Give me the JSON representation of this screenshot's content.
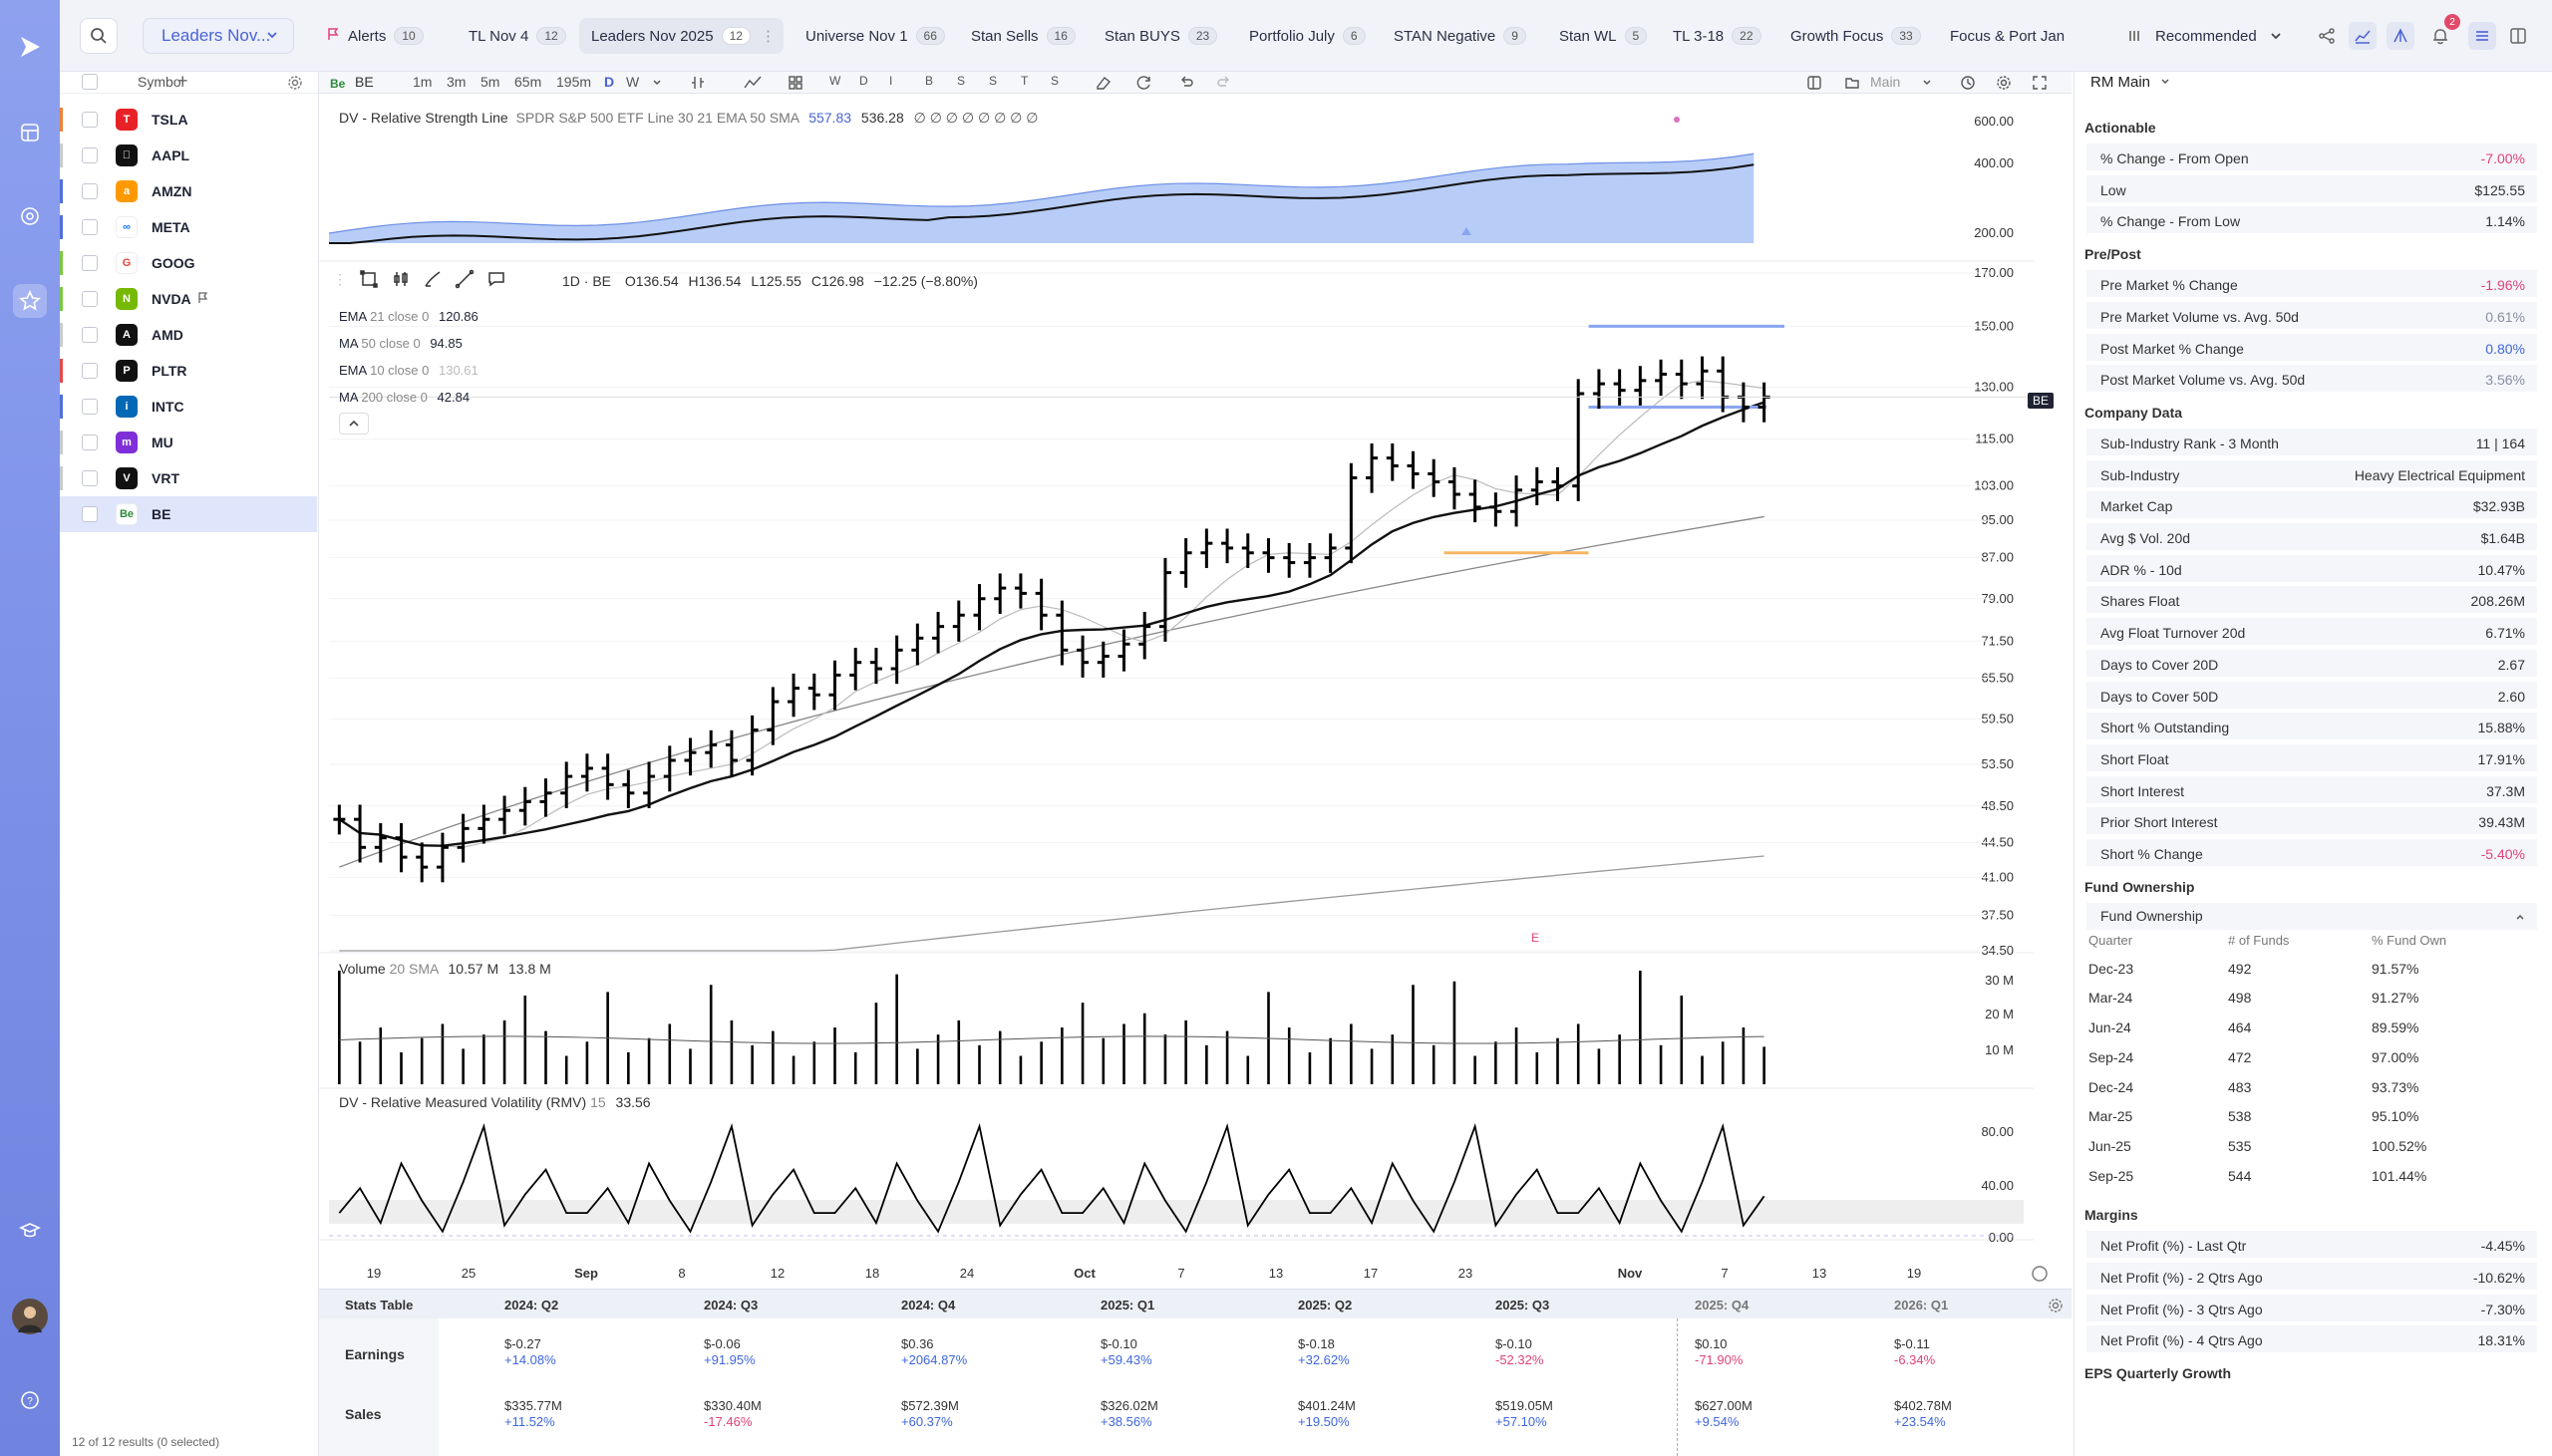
{
  "app": {
    "colors": {
      "accent": "#4a63d6",
      "positive": "#3f66dd",
      "negative": "#e0427a",
      "highlight": "#8aa5f0"
    }
  },
  "topbar": {
    "watchlist": "Leaders Nov...",
    "tabs": [
      {
        "label": "Alerts",
        "count": "10",
        "flag": true
      },
      {
        "label": "TL Nov 4",
        "count": "12"
      },
      {
        "label": "Leaders Nov 2025",
        "count": "12",
        "active": true
      },
      {
        "label": "Universe Nov 1",
        "count": "66"
      },
      {
        "label": "Stan Sells",
        "count": "16"
      },
      {
        "label": "Stan BUYS",
        "count": "23"
      },
      {
        "label": "Portfolio July",
        "count": "6"
      },
      {
        "label": "STAN Negative",
        "count": "9"
      },
      {
        "label": "Stan WL",
        "count": "5"
      },
      {
        "label": "TL 3-18",
        "count": "22"
      },
      {
        "label": "Growth Focus",
        "count": "33"
      },
      {
        "label": "Focus & Port Jan",
        "count": ""
      }
    ],
    "sort": "Recommended",
    "notif_count": "2"
  },
  "watchlist": {
    "header": "Symbol",
    "rows": [
      {
        "sym": "TSLA",
        "color": "#e82127",
        "edge": "#e8843a",
        "logo": "T"
      },
      {
        "sym": "AAPL",
        "color": "#111111",
        "edge": "#c9cbd3",
        "logo": ""
      },
      {
        "sym": "AMZN",
        "color": "#ff9900",
        "edge": "#4f6fd9",
        "logo": "a"
      },
      {
        "sym": "META",
        "color": "#ffffff",
        "edge": "#4f6fd9",
        "logo": "∞"
      },
      {
        "sym": "GOOG",
        "color": "#ffffff",
        "edge": "#7ac943",
        "logo": "G"
      },
      {
        "sym": "NVDA",
        "color": "#76b900",
        "edge": "#7ac943",
        "logo": "N",
        "flag": true
      },
      {
        "sym": "AMD",
        "color": "#111111",
        "edge": "#c9cbd3",
        "logo": "A"
      },
      {
        "sym": "PLTR",
        "color": "#111111",
        "edge": "#e24a4a",
        "logo": "P"
      },
      {
        "sym": "INTC",
        "color": "#0068b5",
        "edge": "#4f6fd9",
        "logo": "i"
      },
      {
        "sym": "MU",
        "color": "#7e2fd8",
        "edge": "#c9cbd3",
        "logo": "m"
      },
      {
        "sym": "VRT",
        "color": "#111111",
        "edge": "#c9cbd3",
        "logo": "V"
      },
      {
        "sym": "BE",
        "color": "#ffffff",
        "edge": "#dfe5fb",
        "logo": "Be",
        "selected": true
      }
    ],
    "footer": "12 of 12 results (0 selected)"
  },
  "toolbar": {
    "symbol": "BE",
    "timeframes": [
      "1m",
      "3m",
      "5m",
      "65m",
      "195m",
      "D",
      "W"
    ],
    "active_tf": "D",
    "bar_letters": [
      "W",
      "D",
      "I",
      "B",
      "S",
      "S",
      "T",
      "S"
    ],
    "layout": "Main"
  },
  "chart": {
    "rs_line": {
      "label": "DV - Relative Strength Line",
      "params": "SPDR S&P 500 ETF  Line 30  21 EMA  50 SMA",
      "v1": "557.83",
      "v2": "536.28",
      "dots": "∅ ∅ ∅ ∅ ∅ ∅ ∅ ∅"
    },
    "price": {
      "symbol": "1D · BE",
      "o": "O136.54",
      "h": "H136.54",
      "l": "L125.55",
      "c": "C126.98",
      "chg": "−12.25 (−8.80%)",
      "tag": "BE"
    },
    "mas": [
      {
        "name": "EMA",
        "params": "21 close 0",
        "value": "120.86",
        "color": "#111"
      },
      {
        "name": "MA",
        "params": "50 close 0",
        "value": "94.85",
        "color": "#111"
      },
      {
        "name": "EMA",
        "params": "10 close 0",
        "value": "130.61",
        "color": "#aaa"
      },
      {
        "name": "MA",
        "params": "200 close 0",
        "value": "42.84",
        "color": "#111"
      }
    ],
    "volume": {
      "label": "Volume",
      "params": "20 SMA",
      "v1": "10.57 M",
      "v2": "13.8 M"
    },
    "rmv": {
      "label": "DV - Relative Measured Volatility (RMV)",
      "params": "15",
      "value": "33.56"
    },
    "earnings_marker": "E",
    "rs_axis": [
      "600.00",
      "400.00",
      "200.00"
    ],
    "price_axis": [
      "170.00",
      "150.00",
      "130.00",
      "115.00",
      "103.00",
      "95.00",
      "87.00",
      "79.00",
      "71.50",
      "65.50",
      "59.50",
      "53.50",
      "48.50",
      "44.50",
      "41.00",
      "37.50",
      "34.50"
    ],
    "vol_axis": [
      "30 M",
      "20 M",
      "10 M"
    ],
    "rmv_axis": [
      "80.00",
      "40.00",
      "0.00"
    ],
    "date_axis": [
      "19",
      "25",
      "Sep",
      "8",
      "12",
      "18",
      "24",
      "Oct",
      "7",
      "13",
      "17",
      "23",
      "Nov",
      "7",
      "13",
      "19"
    ]
  },
  "chart_data": {
    "type": "bar",
    "title": "1D · BE",
    "xlabel": "",
    "ylabel": "",
    "ylim": [
      34.5,
      170
    ],
    "y_scale": "log",
    "ohlc_note": "last bar O136.54 H136.54 L125.55 C126.98",
    "closes": [
      47,
      44,
      45,
      43,
      42,
      44,
      46,
      47,
      48,
      49,
      50,
      52,
      53,
      51,
      50,
      52,
      54,
      55,
      56,
      54,
      58,
      62,
      64,
      63,
      66,
      68,
      67,
      70,
      72,
      74,
      76,
      79,
      81,
      80,
      76,
      70,
      68,
      69,
      71,
      74,
      84,
      88,
      90,
      89,
      88,
      87,
      86,
      87,
      89,
      105,
      110,
      108,
      106,
      104,
      101,
      98,
      97,
      102,
      104,
      103,
      128,
      131,
      129,
      132,
      134,
      131,
      135,
      127,
      124,
      126.98
    ],
    "ema21_last": 120.86,
    "ma50_last": 94.85,
    "ema10_last": 130.61,
    "ma200_last": 42.84,
    "volume_sma20_last": 13.8,
    "volume_last": 10.57,
    "rmv_last": 33.56,
    "rs_line_last": 557.83
  },
  "stats": {
    "title": "Stats Table",
    "quarters": [
      "2024: Q2",
      "2024: Q3",
      "2024: Q4",
      "2025: Q1",
      "2025: Q2",
      "2025: Q3",
      "2025: Q4",
      "2026: Q1"
    ],
    "earnings_label": "Earnings",
    "sales_label": "Sales",
    "earnings": [
      [
        "$-0.27",
        "+14.08%"
      ],
      [
        "$-0.06",
        "+91.95%"
      ],
      [
        "$0.36",
        "+2064.87%"
      ],
      [
        "$-0.10",
        "+59.43%"
      ],
      [
        "$-0.18",
        "+32.62%"
      ],
      [
        "$-0.10",
        "-52.32%"
      ],
      [
        "$0.10",
        "-71.90%"
      ],
      [
        "$-0.11",
        "-6.34%"
      ]
    ],
    "sales": [
      [
        "$335.77M",
        "+11.52%"
      ],
      [
        "$330.40M",
        "-17.46%"
      ],
      [
        "$572.39M",
        "+60.37%"
      ],
      [
        "$326.02M",
        "+38.56%"
      ],
      [
        "$401.24M",
        "+19.50%"
      ],
      [
        "$519.05M",
        "+57.10%"
      ],
      [
        "$627.00M",
        "+9.54%"
      ],
      [
        "$402.78M",
        "+23.54%"
      ]
    ]
  },
  "right": {
    "title": "RM Main",
    "actionable_title": "Actionable",
    "actionable": [
      [
        "% Change - From Open",
        "-7.00%",
        "neg"
      ],
      [
        "Low",
        "$125.55",
        ""
      ],
      [
        "% Change - From Low",
        "1.14%",
        ""
      ]
    ],
    "prepost_title": "Pre/Post",
    "prepost": [
      [
        "Pre Market % Change",
        "-1.96%",
        "neg"
      ],
      [
        "Pre Market Volume vs. Avg. 50d",
        "0.61%",
        "mut"
      ],
      [
        "Post Market % Change",
        "0.80%",
        "pos"
      ],
      [
        "Post Market Volume vs. Avg. 50d",
        "3.56%",
        "mut"
      ]
    ],
    "company_title": "Company Data",
    "company": [
      [
        "Sub-Industry Rank - 3 Month",
        "11 | 164",
        ""
      ],
      [
        "Sub-Industry",
        "Heavy Electrical Equipment",
        ""
      ],
      [
        "Market Cap",
        "$32.93B",
        ""
      ],
      [
        "Avg $ Vol. 20d",
        "$1.64B",
        ""
      ],
      [
        "ADR % - 10d",
        "10.47%",
        ""
      ],
      [
        "Shares Float",
        "208.26M",
        ""
      ],
      [
        "Avg Float Turnover 20d",
        "6.71%",
        ""
      ],
      [
        "Days to Cover 20D",
        "2.67",
        ""
      ],
      [
        "Days to Cover 50D",
        "2.60",
        ""
      ],
      [
        "Short % Outstanding",
        "15.88%",
        ""
      ],
      [
        "Short Float",
        "17.91%",
        ""
      ],
      [
        "Short Interest",
        "37.3M",
        ""
      ],
      [
        "Prior Short Interest",
        "39.43M",
        ""
      ],
      [
        "Short % Change",
        "-5.40%",
        "neg"
      ]
    ],
    "fund_title": "Fund Ownership",
    "fund_sub": "Fund Ownership",
    "fund_headers": [
      "Quarter",
      "# of Funds",
      "% Fund Own"
    ],
    "fund_rows": [
      [
        "Dec-23",
        "492",
        "91.57%"
      ],
      [
        "Mar-24",
        "498",
        "91.27%"
      ],
      [
        "Jun-24",
        "464",
        "89.59%"
      ],
      [
        "Sep-24",
        "472",
        "97.00%"
      ],
      [
        "Dec-24",
        "483",
        "93.73%"
      ],
      [
        "Mar-25",
        "538",
        "95.10%"
      ],
      [
        "Jun-25",
        "535",
        "100.52%"
      ],
      [
        "Sep-25",
        "544",
        "101.44%"
      ]
    ],
    "margins_title": "Margins",
    "margins": [
      [
        "Net Profit (%) - Last Qtr",
        "-4.45%",
        ""
      ],
      [
        "Net Profit (%) - 2 Qtrs Ago",
        "-10.62%",
        ""
      ],
      [
        "Net Profit (%) - 3 Qtrs Ago",
        "-7.30%",
        ""
      ],
      [
        "Net Profit (%) - 4 Qtrs Ago",
        "18.31%",
        ""
      ]
    ],
    "eps_title": "EPS Quarterly Growth"
  }
}
